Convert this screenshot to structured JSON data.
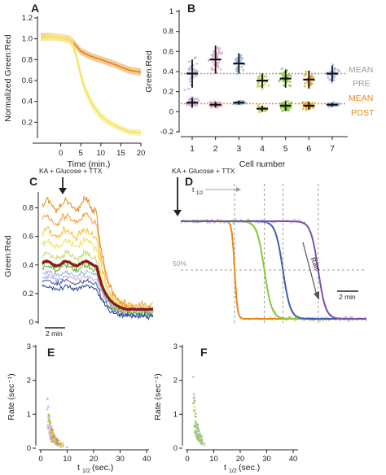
{
  "panels": {
    "A": "A",
    "B": "B",
    "C": "C",
    "D": "D",
    "E": "E",
    "F": "F"
  },
  "colors": {
    "orange": "#e8891a",
    "lightorange": "#f2b97a",
    "yellow": "#f1e35e",
    "paleyellow": "#f7ef9b",
    "green": "#8dc63f",
    "blue": "#3f5fb0",
    "lightblue": "#9cb8de",
    "purple": "#7b52ab",
    "darkred": "#8c1a1a",
    "gray": "#9b9b9b",
    "lavender": "#c7aee0",
    "pink": "#e0a8c8"
  },
  "chart_data": [
    {
      "id": "A",
      "type": "line",
      "xlabel": "Time (min.)",
      "ylabel": "Normalized Green:Red",
      "xlim": [
        -5,
        20
      ],
      "ylim": [
        0,
        1.2
      ],
      "xticks": [
        "0",
        "5",
        "10",
        "15",
        "20"
      ],
      "yticks": [
        "0.2",
        "0.4",
        "0.6",
        "0.8",
        "1.0",
        "1.2"
      ],
      "series": [
        {
          "color": "#e8891a",
          "band": "#f2b97a",
          "x": [
            -5,
            -2,
            0,
            2,
            3,
            5,
            7,
            10,
            13,
            15,
            17,
            20
          ],
          "y": [
            1.02,
            1.02,
            1.01,
            1.0,
            0.97,
            0.88,
            0.84,
            0.8,
            0.76,
            0.73,
            0.7,
            0.68
          ]
        },
        {
          "color": "#f1e35e",
          "band": "#f7ef9b",
          "x": [
            -5,
            -2,
            0,
            2,
            3,
            4,
            5,
            6,
            8,
            10,
            12,
            15,
            17,
            20
          ],
          "y": [
            1.0,
            1.02,
            1.01,
            0.99,
            0.95,
            0.82,
            0.65,
            0.52,
            0.36,
            0.26,
            0.2,
            0.14,
            0.11,
            0.1
          ]
        }
      ]
    },
    {
      "id": "B",
      "type": "scatter",
      "xlabel": "Cell number",
      "ylabel": "Green:Red",
      "xlim": [
        0.5,
        7.5
      ],
      "ylim": [
        -0.2,
        1.0
      ],
      "xticks": [
        "1",
        "2",
        "3",
        "4",
        "5",
        "6",
        "7"
      ],
      "yticks": [
        "-0.2",
        "0",
        "0.2",
        "0.4",
        "0.6",
        "0.8",
        "1"
      ],
      "reference_lines": [
        {
          "label_lines": [
            "MEAN",
            "PRE"
          ],
          "y": 0.38,
          "color": "#9b9b9b"
        },
        {
          "label_lines": [
            "MEAN",
            "POST"
          ],
          "y": 0.08,
          "color": "#e8891a"
        }
      ],
      "pre": [
        {
          "cell": 1,
          "mean": 0.38,
          "sd": 0.14,
          "color": "#c7aee0"
        },
        {
          "cell": 2,
          "mean": 0.52,
          "sd": 0.14,
          "color": "#e0a8c8"
        },
        {
          "cell": 3,
          "mean": 0.48,
          "sd": 0.1,
          "color": "#9cb8de"
        },
        {
          "cell": 4,
          "mean": 0.31,
          "sd": 0.07,
          "color": "#c9d36a"
        },
        {
          "cell": 5,
          "mean": 0.33,
          "sd": 0.09,
          "color": "#8dc63f"
        },
        {
          "cell": 6,
          "mean": 0.32,
          "sd": 0.09,
          "color": "#e8a83e"
        },
        {
          "cell": 7,
          "mean": 0.38,
          "sd": 0.08,
          "color": "#9cb8de"
        }
      ],
      "post": [
        {
          "cell": 1,
          "mean": 0.09,
          "sd": 0.05,
          "color": "#c7aee0"
        },
        {
          "cell": 2,
          "mean": 0.07,
          "sd": 0.03,
          "color": "#e0a8c8"
        },
        {
          "cell": 3,
          "mean": 0.09,
          "sd": 0.02,
          "color": "#9cb8de"
        },
        {
          "cell": 4,
          "mean": 0.03,
          "sd": 0.03,
          "color": "#c9d36a"
        },
        {
          "cell": 5,
          "mean": 0.06,
          "sd": 0.05,
          "color": "#8dc63f"
        },
        {
          "cell": 6,
          "mean": 0.06,
          "sd": 0.04,
          "color": "#e8a83e"
        },
        {
          "cell": 7,
          "mean": 0.07,
          "sd": 0.02,
          "color": "#9cb8de"
        }
      ]
    },
    {
      "id": "C",
      "type": "line",
      "annotation": "KA + Glucose + TTX",
      "ylabel": "Green:Red",
      "scalebar": "2 min",
      "ylim": [
        0,
        0.9
      ],
      "yticks": [
        "0",
        "0.2",
        "0.4",
        "0.6",
        "0.8"
      ],
      "traces": [
        {
          "color": "#e8891a",
          "pre": 0.82,
          "post": 0.1
        },
        {
          "color": "#f0a030",
          "pre": 0.72,
          "post": 0.12
        },
        {
          "color": "#f3c23a",
          "pre": 0.62,
          "post": 0.1
        },
        {
          "color": "#f1e35e",
          "pre": 0.55,
          "post": 0.09
        },
        {
          "color": "#c9d36a",
          "pre": 0.46,
          "post": 0.08
        },
        {
          "color": "#8dc63f",
          "pre": 0.41,
          "post": 0.07
        },
        {
          "color": "#6dae3a",
          "pre": 0.38,
          "post": 0.06
        },
        {
          "color": "#9cb8de",
          "pre": 0.34,
          "post": 0.08
        },
        {
          "color": "#c7aee0",
          "pre": 0.31,
          "post": 0.09
        },
        {
          "color": "#3f5fb0",
          "pre": 0.28,
          "post": 0.05
        },
        {
          "color": "#2c3f8a",
          "pre": 0.24,
          "post": 0.04
        }
      ],
      "mean_trace": {
        "color": "#8c1a1a",
        "pre": 0.41,
        "post": 0.09
      }
    },
    {
      "id": "D",
      "type": "line",
      "annotation": "KA + Glucose + TTX",
      "t_half": "t",
      "t_half_sub": "1/2",
      "fifty_label": "50%",
      "rate_label": "Rate",
      "scalebar": "2 min",
      "traces": [
        {
          "color": "#f3c23a",
          "fit": "#e8891a",
          "t50": 0.29
        },
        {
          "color": "#8dc63f",
          "fit": "#8dc63f",
          "t50": 0.45
        },
        {
          "color": "#9cb8de",
          "fit": "#3f5fb0",
          "t50": 0.55
        },
        {
          "color": "#c7aee0",
          "fit": "#7b52ab",
          "t50": 0.74
        }
      ]
    },
    {
      "id": "E",
      "type": "scatter",
      "xlabel_main": "t",
      "xlabel_sub": "1/2",
      "xlabel_unit": "(sec.)",
      "ylabel": "Rate (sec⁻¹)",
      "xlim": [
        0,
        40
      ],
      "ylim": [
        0,
        3
      ],
      "xticks": [
        "0",
        "10",
        "20",
        "30",
        "40"
      ],
      "yticks": [
        "0",
        "1",
        "2",
        "3"
      ]
    },
    {
      "id": "F",
      "type": "scatter",
      "xlabel_main": "t",
      "xlabel_sub": "1/2",
      "xlabel_unit": "(sec.)",
      "ylabel": "Rate (sec⁻¹)",
      "xlim": [
        0,
        40
      ],
      "ylim": [
        0,
        3
      ],
      "xticks": [
        "0",
        "10",
        "20",
        "30",
        "40"
      ],
      "yticks": [
        "0",
        "1",
        "2",
        "3"
      ]
    }
  ]
}
